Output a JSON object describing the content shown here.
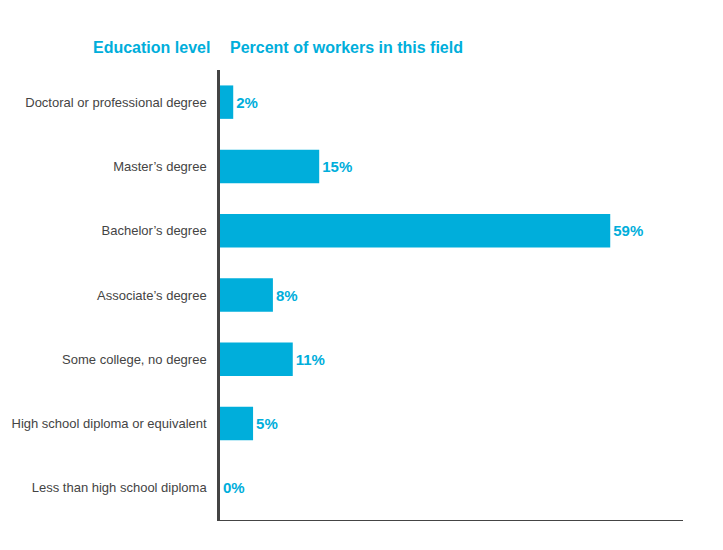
{
  "chart_data": {
    "type": "bar",
    "orientation": "horizontal",
    "ylabel": "Education level",
    "xlabel": "Percent of workers in this field",
    "categories": [
      "Doctoral or professional degree",
      "Master’s degree",
      "Bachelor’s degree",
      "Associate’s degree",
      "Some college, no degree",
      "High school diploma or equivalent",
      "Less than high school diploma"
    ],
    "values": [
      2,
      15,
      59,
      8,
      11,
      5,
      0
    ],
    "value_labels": [
      "2%",
      "15%",
      "59%",
      "8%",
      "11%",
      "5%",
      "0%"
    ],
    "color": "#00aedb",
    "xlim": [
      0,
      70
    ],
    "data_labels": true,
    "tick_labels": "y",
    "grid": false
  }
}
